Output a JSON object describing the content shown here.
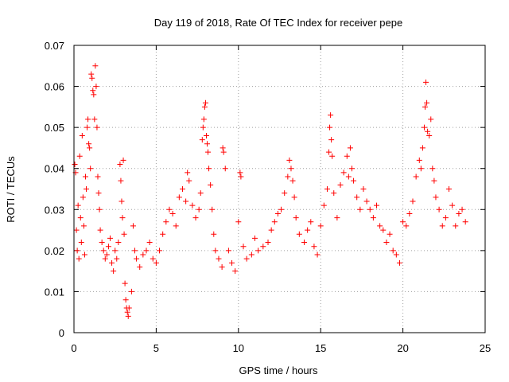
{
  "chart_data": {
    "type": "scatter",
    "title": "Day 119 of 2018, Rate Of TEC Index for receiver pepe",
    "xlabel": "GPS time / hours",
    "ylabel": "ROTI / TECUs",
    "xlim": [
      0,
      25
    ],
    "ylim": [
      0,
      0.07
    ],
    "xticks": [
      0,
      5,
      10,
      15,
      20,
      25
    ],
    "xtick_labels": [
      "0",
      "5",
      "10",
      "15",
      "20",
      "25"
    ],
    "yticks": [
      0,
      0.01,
      0.02,
      0.03,
      0.04,
      0.05,
      0.06,
      0.07
    ],
    "ytick_labels": [
      "0",
      "0.01",
      "0.02",
      "0.03",
      "0.04",
      "0.05",
      "0.06",
      "0.07"
    ],
    "grid": true,
    "marker": "+",
    "color": "#ff0000",
    "series": [
      {
        "name": "ROTI",
        "points": [
          [
            0.05,
            0.041
          ],
          [
            0.1,
            0.039
          ],
          [
            0.15,
            0.025
          ],
          [
            0.2,
            0.02
          ],
          [
            0.25,
            0.031
          ],
          [
            0.3,
            0.018
          ],
          [
            0.35,
            0.043
          ],
          [
            0.4,
            0.028
          ],
          [
            0.45,
            0.022
          ],
          [
            0.5,
            0.048
          ],
          [
            0.55,
            0.033
          ],
          [
            0.6,
            0.026
          ],
          [
            0.65,
            0.019
          ],
          [
            0.7,
            0.038
          ],
          [
            0.75,
            0.035
          ],
          [
            0.8,
            0.05
          ],
          [
            0.85,
            0.052
          ],
          [
            0.9,
            0.046
          ],
          [
            0.95,
            0.045
          ],
          [
            1.0,
            0.04
          ],
          [
            1.05,
            0.063
          ],
          [
            1.1,
            0.062
          ],
          [
            1.15,
            0.059
          ],
          [
            1.2,
            0.058
          ],
          [
            1.25,
            0.052
          ],
          [
            1.3,
            0.065
          ],
          [
            1.35,
            0.06
          ],
          [
            1.4,
            0.05
          ],
          [
            1.45,
            0.038
          ],
          [
            1.5,
            0.034
          ],
          [
            1.55,
            0.03
          ],
          [
            1.6,
            0.025
          ],
          [
            1.7,
            0.022
          ],
          [
            1.8,
            0.02
          ],
          [
            1.9,
            0.018
          ],
          [
            2.0,
            0.019
          ],
          [
            2.1,
            0.021
          ],
          [
            2.2,
            0.023
          ],
          [
            2.3,
            0.017
          ],
          [
            2.4,
            0.015
          ],
          [
            2.5,
            0.02
          ],
          [
            2.6,
            0.018
          ],
          [
            2.7,
            0.022
          ],
          [
            2.8,
            0.041
          ],
          [
            2.85,
            0.037
          ],
          [
            2.9,
            0.032
          ],
          [
            2.95,
            0.028
          ],
          [
            3.0,
            0.042
          ],
          [
            3.05,
            0.024
          ],
          [
            3.1,
            0.012
          ],
          [
            3.15,
            0.008
          ],
          [
            3.2,
            0.006
          ],
          [
            3.25,
            0.005
          ],
          [
            3.3,
            0.004
          ],
          [
            3.35,
            0.006
          ],
          [
            3.5,
            0.01
          ],
          [
            3.6,
            0.026
          ],
          [
            3.7,
            0.02
          ],
          [
            3.8,
            0.018
          ],
          [
            4.0,
            0.016
          ],
          [
            4.2,
            0.019
          ],
          [
            4.4,
            0.02
          ],
          [
            4.6,
            0.022
          ],
          [
            4.8,
            0.018
          ],
          [
            5.0,
            0.017
          ],
          [
            5.2,
            0.02
          ],
          [
            5.4,
            0.024
          ],
          [
            5.6,
            0.027
          ],
          [
            5.8,
            0.03
          ],
          [
            6.0,
            0.029
          ],
          [
            6.2,
            0.026
          ],
          [
            6.4,
            0.033
          ],
          [
            6.6,
            0.035
          ],
          [
            6.8,
            0.032
          ],
          [
            6.9,
            0.039
          ],
          [
            7.0,
            0.037
          ],
          [
            7.2,
            0.031
          ],
          [
            7.4,
            0.028
          ],
          [
            7.6,
            0.03
          ],
          [
            7.7,
            0.034
          ],
          [
            7.8,
            0.047
          ],
          [
            7.85,
            0.05
          ],
          [
            7.9,
            0.052
          ],
          [
            7.95,
            0.055
          ],
          [
            8.0,
            0.056
          ],
          [
            8.05,
            0.048
          ],
          [
            8.1,
            0.046
          ],
          [
            8.15,
            0.044
          ],
          [
            8.2,
            0.04
          ],
          [
            8.3,
            0.036
          ],
          [
            8.4,
            0.03
          ],
          [
            8.5,
            0.024
          ],
          [
            8.6,
            0.02
          ],
          [
            8.8,
            0.018
          ],
          [
            9.0,
            0.016
          ],
          [
            9.05,
            0.045
          ],
          [
            9.1,
            0.044
          ],
          [
            9.2,
            0.04
          ],
          [
            9.4,
            0.02
          ],
          [
            9.6,
            0.017
          ],
          [
            9.8,
            0.015
          ],
          [
            10.0,
            0.027
          ],
          [
            10.1,
            0.039
          ],
          [
            10.15,
            0.038
          ],
          [
            10.3,
            0.021
          ],
          [
            10.5,
            0.018
          ],
          [
            10.8,
            0.019
          ],
          [
            11.0,
            0.023
          ],
          [
            11.2,
            0.02
          ],
          [
            11.5,
            0.021
          ],
          [
            11.8,
            0.022
          ],
          [
            12.0,
            0.025
          ],
          [
            12.2,
            0.027
          ],
          [
            12.4,
            0.029
          ],
          [
            12.6,
            0.03
          ],
          [
            12.8,
            0.034
          ],
          [
            13.0,
            0.038
          ],
          [
            13.1,
            0.042
          ],
          [
            13.2,
            0.04
          ],
          [
            13.3,
            0.037
          ],
          [
            13.4,
            0.033
          ],
          [
            13.5,
            0.028
          ],
          [
            13.7,
            0.024
          ],
          [
            14.0,
            0.022
          ],
          [
            14.2,
            0.025
          ],
          [
            14.4,
            0.027
          ],
          [
            14.6,
            0.021
          ],
          [
            14.8,
            0.019
          ],
          [
            15.0,
            0.026
          ],
          [
            15.2,
            0.031
          ],
          [
            15.4,
            0.035
          ],
          [
            15.5,
            0.044
          ],
          [
            15.55,
            0.05
          ],
          [
            15.6,
            0.053
          ],
          [
            15.65,
            0.047
          ],
          [
            15.7,
            0.043
          ],
          [
            15.8,
            0.034
          ],
          [
            16.0,
            0.028
          ],
          [
            16.2,
            0.036
          ],
          [
            16.4,
            0.039
          ],
          [
            16.6,
            0.043
          ],
          [
            16.7,
            0.038
          ],
          [
            16.8,
            0.045
          ],
          [
            16.9,
            0.04
          ],
          [
            17.0,
            0.037
          ],
          [
            17.2,
            0.033
          ],
          [
            17.4,
            0.03
          ],
          [
            17.6,
            0.035
          ],
          [
            17.8,
            0.032
          ],
          [
            18.0,
            0.03
          ],
          [
            18.2,
            0.028
          ],
          [
            18.4,
            0.031
          ],
          [
            18.6,
            0.026
          ],
          [
            18.8,
            0.025
          ],
          [
            19.0,
            0.022
          ],
          [
            19.2,
            0.024
          ],
          [
            19.4,
            0.02
          ],
          [
            19.6,
            0.019
          ],
          [
            19.8,
            0.017
          ],
          [
            20.0,
            0.027
          ],
          [
            20.2,
            0.026
          ],
          [
            20.4,
            0.029
          ],
          [
            20.6,
            0.032
          ],
          [
            20.8,
            0.038
          ],
          [
            21.0,
            0.042
          ],
          [
            21.1,
            0.04
          ],
          [
            21.2,
            0.045
          ],
          [
            21.3,
            0.05
          ],
          [
            21.35,
            0.055
          ],
          [
            21.4,
            0.061
          ],
          [
            21.45,
            0.056
          ],
          [
            21.5,
            0.049
          ],
          [
            21.6,
            0.048
          ],
          [
            21.7,
            0.052
          ],
          [
            21.8,
            0.04
          ],
          [
            21.9,
            0.037
          ],
          [
            22.0,
            0.033
          ],
          [
            22.2,
            0.03
          ],
          [
            22.4,
            0.026
          ],
          [
            22.6,
            0.028
          ],
          [
            22.8,
            0.035
          ],
          [
            23.0,
            0.031
          ],
          [
            23.2,
            0.026
          ],
          [
            23.4,
            0.029
          ],
          [
            23.6,
            0.03
          ],
          [
            23.8,
            0.027
          ]
        ]
      }
    ]
  }
}
